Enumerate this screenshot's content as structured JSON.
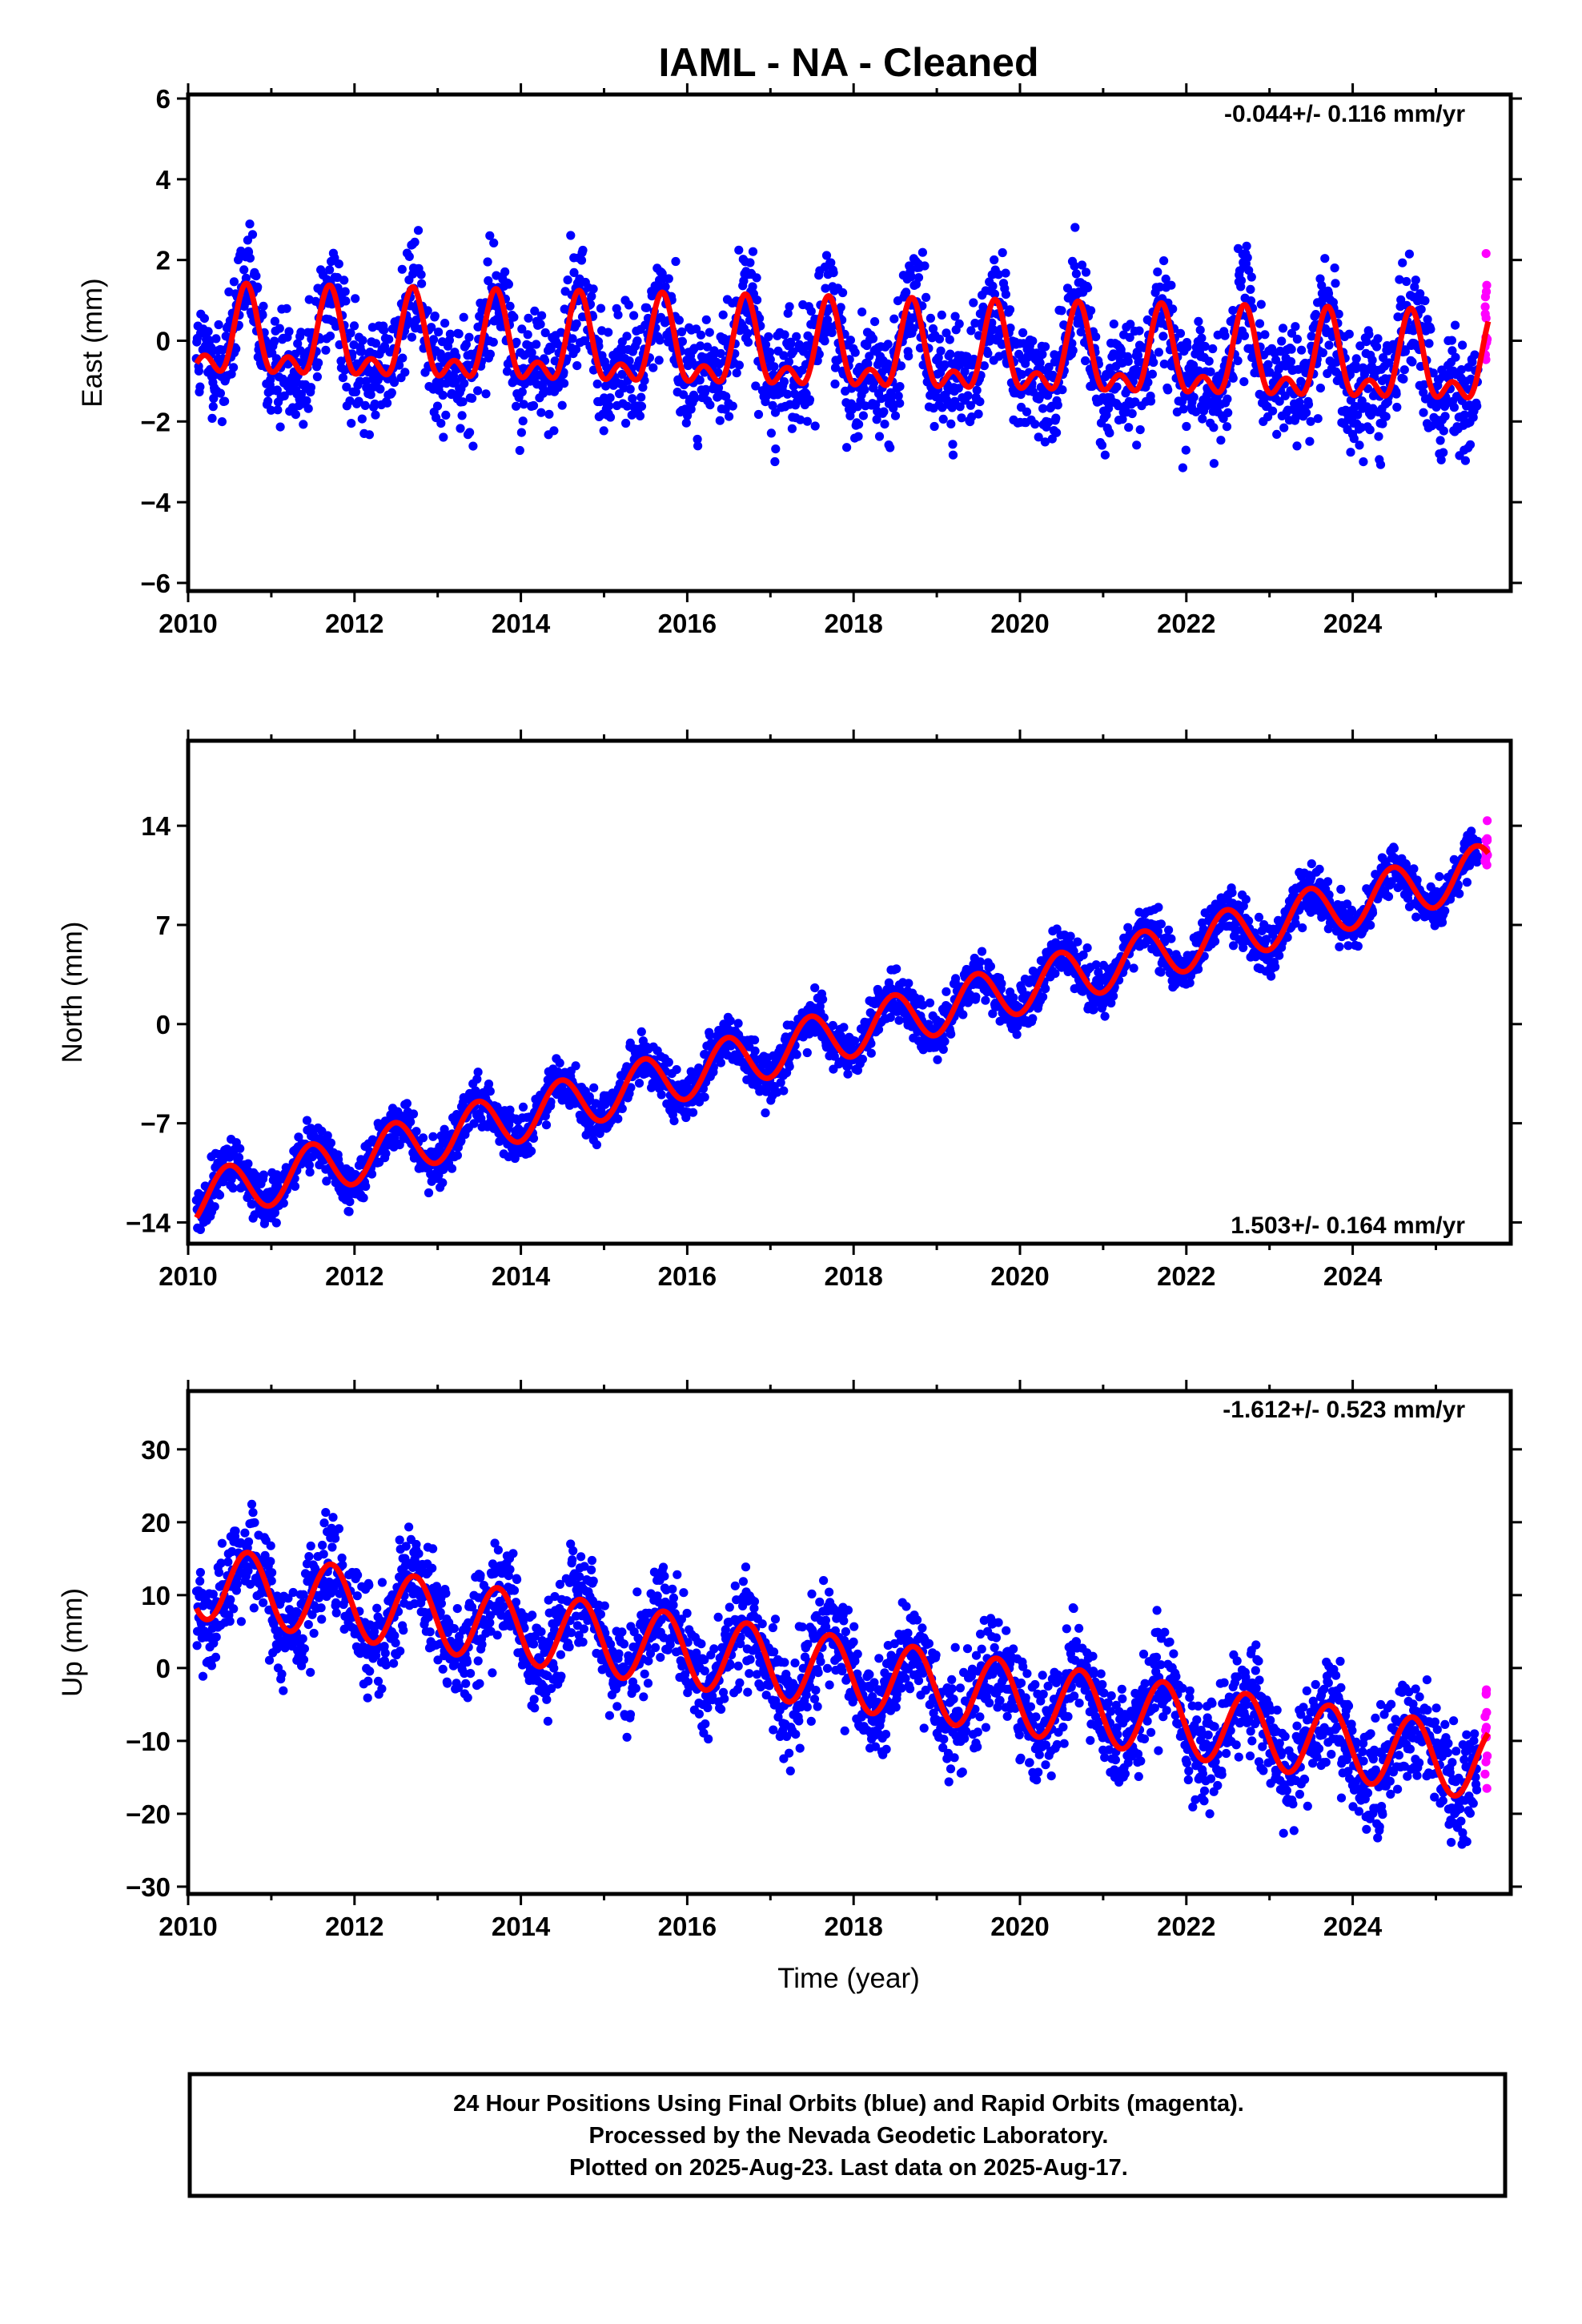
{
  "title": "IAML  - NA - Cleaned",
  "xlabel": "Time (year)",
  "footer": [
    "24 Hour Positions Using Final Orbits (blue) and Rapid Orbits (magenta).",
    "Processed by the Nevada Geodetic Laboratory.",
    "Plotted on 2025-Aug-23. Last data on 2025-Aug-17."
  ],
  "colors": {
    "final": "#0000ff",
    "rapid": "#ff00ff",
    "model": "#ff0000"
  },
  "chart_data": [
    {
      "type": "scatter",
      "ylabel": "East (mm)",
      "rate_text": "-0.044+/- 0.116 mm/yr",
      "rate_position": "top-right",
      "xlim": [
        2010,
        2025.9
      ],
      "ylim": [
        -6.2,
        6.1
      ],
      "xticks": [
        "2010",
        "2012",
        "2014",
        "2016",
        "2018",
        "2020",
        "2022",
        "2024"
      ],
      "yticks": [
        "−6",
        "−4",
        "−2",
        "0",
        "2",
        "4",
        "6"
      ],
      "yticks_values": [
        -6,
        -4,
        -2,
        0,
        2,
        4,
        6
      ],
      "data_start": 2010.1,
      "data_end": 2025.63,
      "model": {
        "offset": 0.0,
        "rate": -0.044,
        "annual_amp": 0.9,
        "annual_phase_year": 0.7,
        "semiannual_amp": 0.55,
        "semiannual_phase_year": 0.2
      },
      "scatter_sd": 1.0,
      "series": [
        {
          "name": "Final Orbits",
          "color": "#0000ff"
        },
        {
          "name": "Rapid Orbits",
          "color": "#ff00ff"
        },
        {
          "name": "Model",
          "color": "#ff0000"
        }
      ]
    },
    {
      "type": "scatter",
      "ylabel": "North (mm)",
      "rate_text": "1.503+/- 0.164 mm/yr",
      "rate_position": "bottom-right",
      "xlim": [
        2010,
        2025.9
      ],
      "ylim": [
        -15.5,
        20
      ],
      "xticks": [
        "2010",
        "2012",
        "2014",
        "2016",
        "2018",
        "2020",
        "2022",
        "2024"
      ],
      "yticks": [
        "−14",
        "−7",
        "0",
        "7",
        "14"
      ],
      "yticks_values": [
        -14,
        -7,
        0,
        7,
        14
      ],
      "data_start": 2010.1,
      "data_end": 2025.63,
      "model": {
        "offset": -12.5,
        "rate": 1.503,
        "annual_amp": 1.8,
        "annual_phase_year": 0.48,
        "semiannual_amp": 0.0,
        "semiannual_phase_year": 0.0
      },
      "scatter_sd": 1.2,
      "series": [
        {
          "name": "Final Orbits",
          "color": "#0000ff"
        },
        {
          "name": "Rapid Orbits",
          "color": "#ff00ff"
        },
        {
          "name": "Model",
          "color": "#ff0000"
        }
      ]
    },
    {
      "type": "scatter",
      "ylabel": "Up (mm)",
      "rate_text": "-1.612+/- 0.523 mm/yr",
      "rate_position": "top-right",
      "xlim": [
        2010,
        2025.9
      ],
      "ylim": [
        -31,
        38
      ],
      "xticks": [
        "2010",
        "2012",
        "2014",
        "2016",
        "2018",
        "2020",
        "2022",
        "2024"
      ],
      "yticks": [
        "−30",
        "−20",
        "−10",
        "0",
        "10",
        "20",
        "30"
      ],
      "yticks_values": [
        -30,
        -20,
        -10,
        0,
        10,
        20,
        30
      ],
      "data_start": 2010.1,
      "data_end": 2025.63,
      "model": {
        "offset": 12.0,
        "rate": -1.612,
        "annual_amp": 5.0,
        "annual_phase_year": 0.72,
        "semiannual_amp": 0.0,
        "semiannual_phase_year": 0.0
      },
      "scatter_sd": 5.0,
      "series": [
        {
          "name": "Final Orbits",
          "color": "#0000ff"
        },
        {
          "name": "Rapid Orbits",
          "color": "#ff00ff"
        },
        {
          "name": "Model",
          "color": "#ff0000"
        }
      ]
    }
  ]
}
